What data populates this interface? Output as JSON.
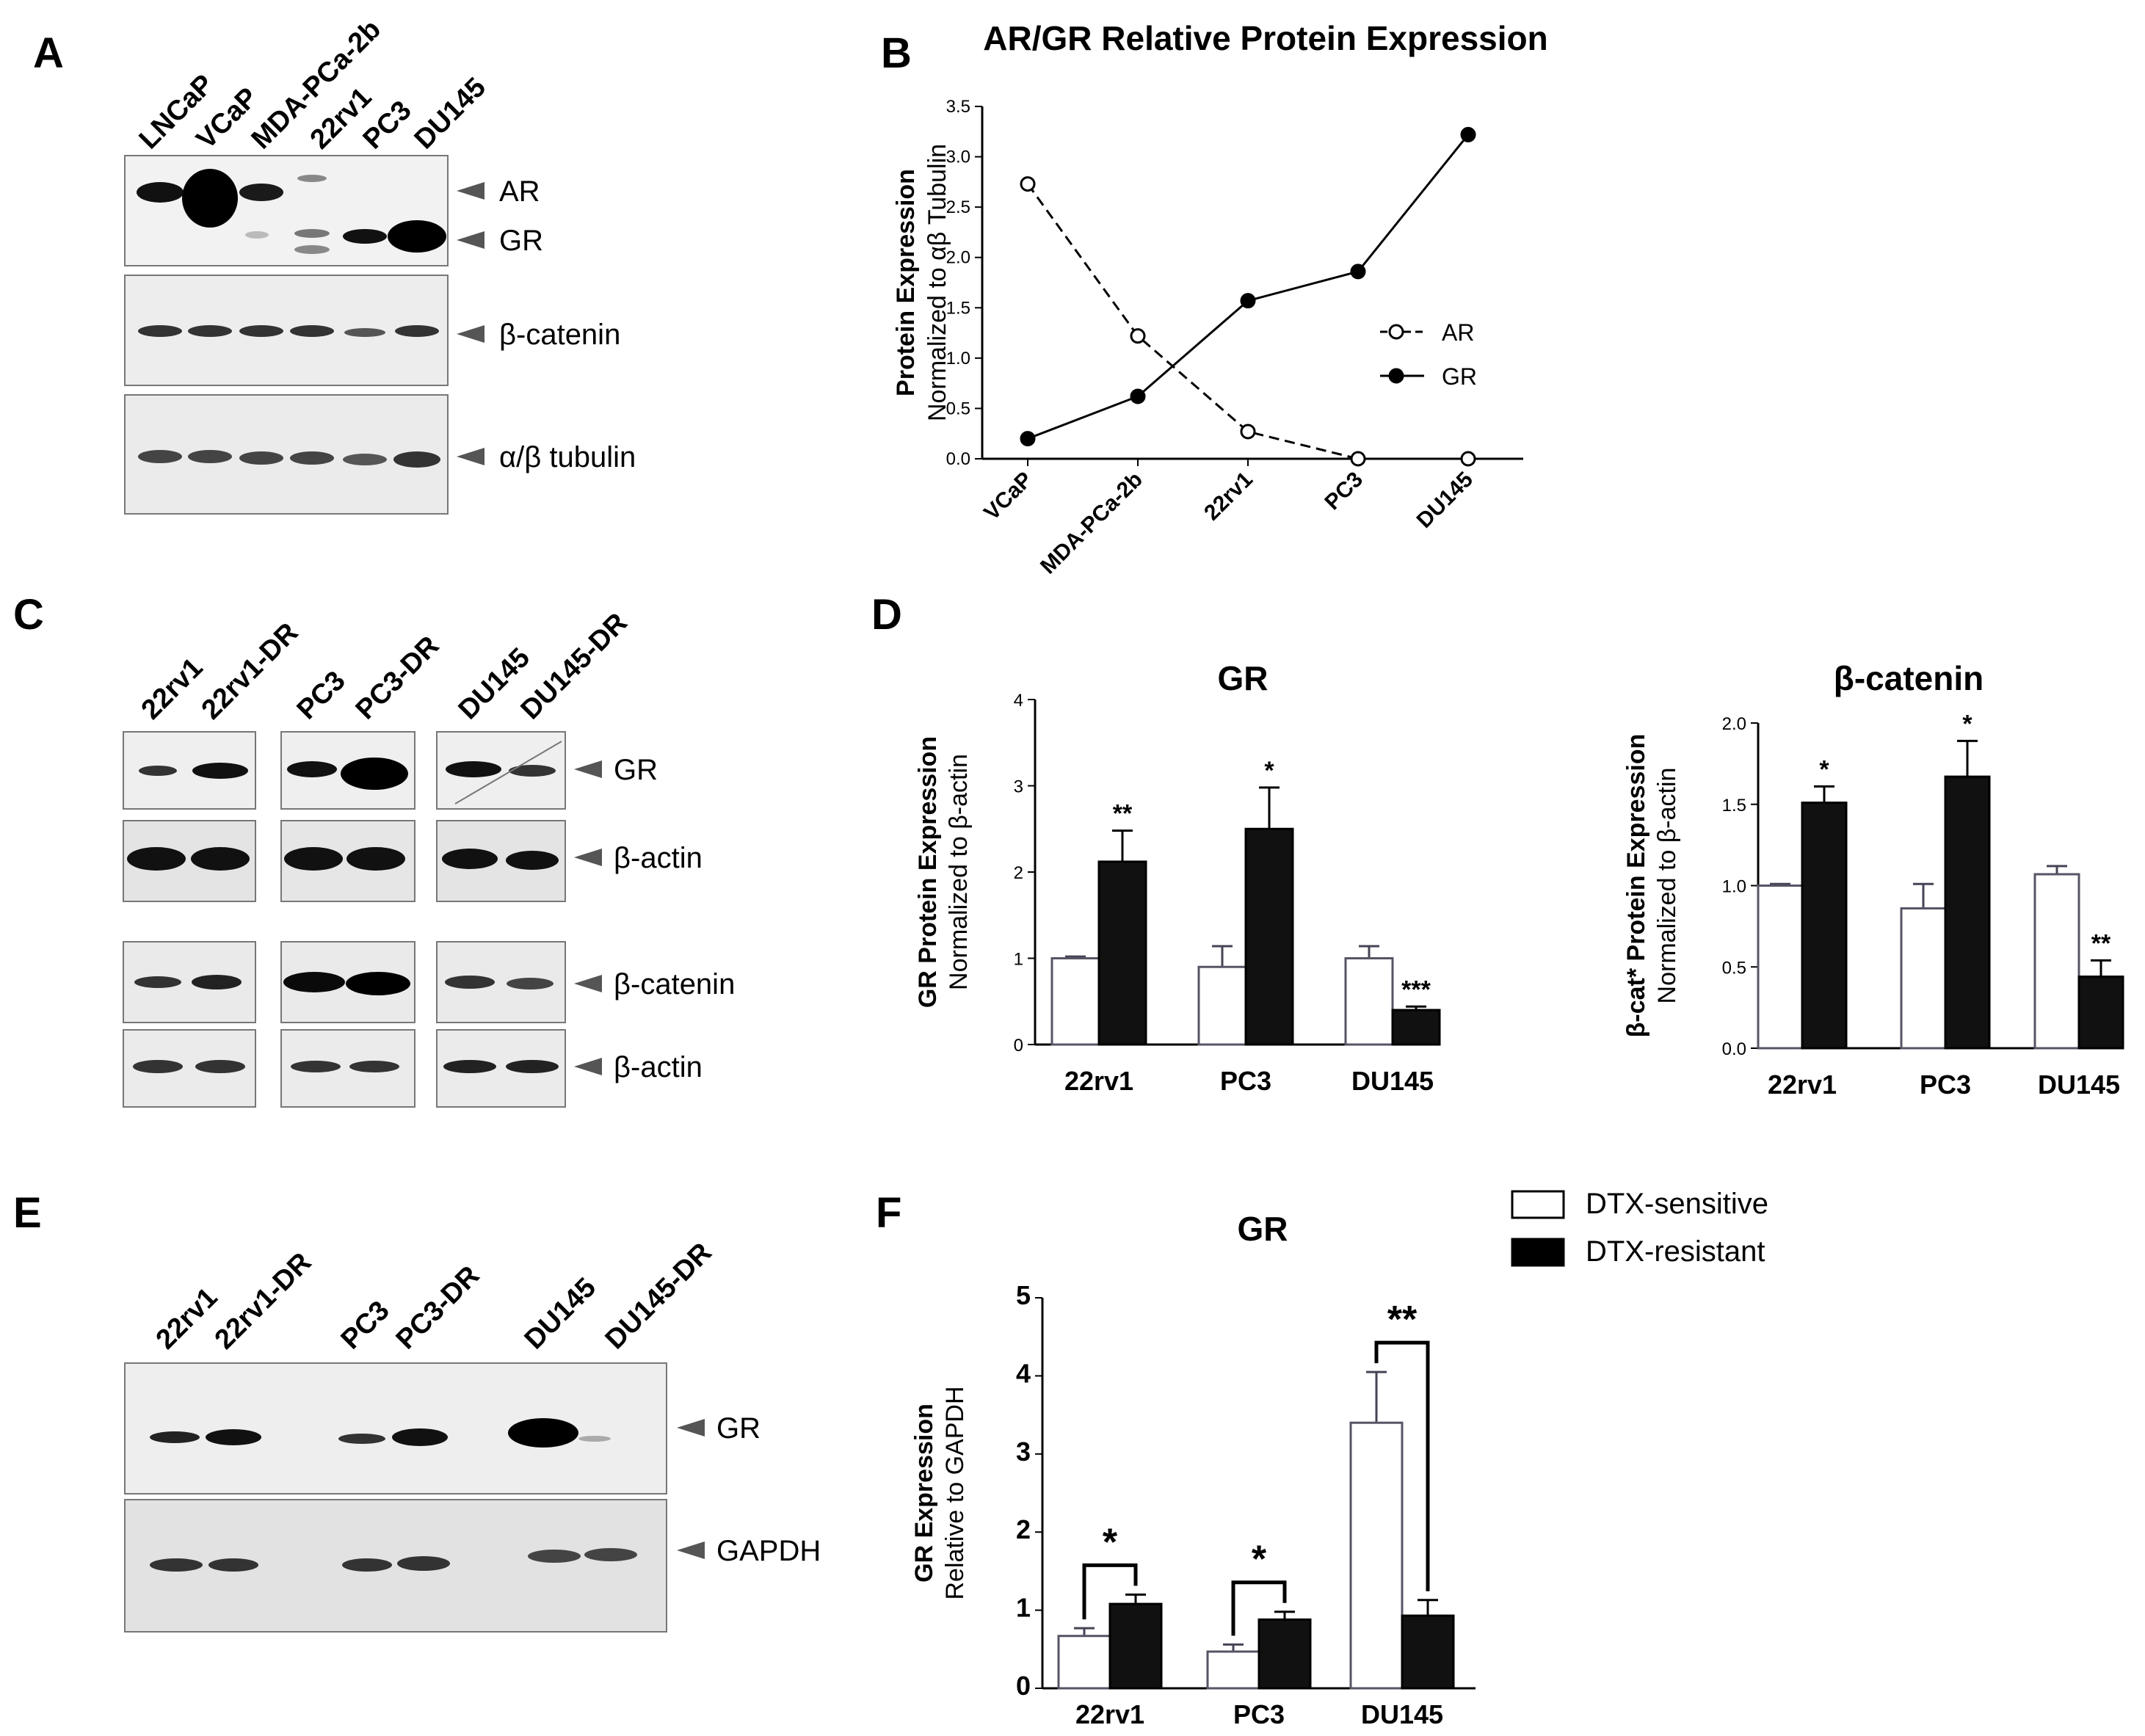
{
  "panels": {
    "A": {
      "letter": "A",
      "lanes": [
        "LNCaP",
        "VCaP",
        "MDA-PCa-2b",
        "22rv1",
        "PC3",
        "DU145"
      ],
      "labels": [
        "AR",
        "GR",
        "β-catenin",
        "α/β tubulin"
      ]
    },
    "C": {
      "letter": "C",
      "lanes": [
        "22rv1",
        "22rv1-DR",
        "PC3",
        "PC3-DR",
        "DU145",
        "DU145-DR"
      ],
      "labels": [
        "GR",
        "β-actin",
        "β-catenin",
        "β-actin"
      ]
    },
    "E": {
      "letter": "E",
      "lanes": [
        "22rv1",
        "22rv1-DR",
        "PC3",
        "PC3-DR",
        "DU145",
        "DU145-DR"
      ],
      "labels": [
        "GR",
        "GAPDH"
      ]
    },
    "B": {
      "letter": "B"
    },
    "D": {
      "letter": "D"
    },
    "F": {
      "letter": "F"
    }
  },
  "legend": {
    "sensitive": "DTX-sensitive",
    "resistant": "DTX-resistant",
    "sensitive_color": "#ffffff",
    "resistant_color": "#000000"
  },
  "chart_data": [
    {
      "panel": "B",
      "type": "line",
      "title": "AR/GR Relative Protein Expression",
      "ylabel": "Protein Expression",
      "ylabel2": "Normalized to αβ Tubulin",
      "categories": [
        "VCaP",
        "MDA-PCa-2b",
        "22rv1",
        "PC3",
        "DU145"
      ],
      "ylim": [
        0,
        3.5
      ],
      "yticks": [
        "0.0",
        "0.5",
        "1.0",
        "1.5",
        "2.0",
        "2.5",
        "3.0",
        "3.5"
      ],
      "series": [
        {
          "name": "AR",
          "values": [
            2.73,
            1.22,
            0.27,
            0.0,
            0.0
          ],
          "style": "dashed-open"
        },
        {
          "name": "GR",
          "values": [
            0.2,
            0.62,
            1.57,
            1.86,
            3.22
          ],
          "style": "solid-filled"
        }
      ]
    },
    {
      "panel": "D1",
      "type": "bar",
      "title": "GR",
      "ylabel": "GR Protein Expression",
      "ylabel2": "Normalized to β-actin",
      "categories": [
        "22rv1",
        "PC3",
        "DU145"
      ],
      "ylim": [
        0,
        4
      ],
      "yticks": [
        "0",
        "1",
        "2",
        "3",
        "4"
      ],
      "series": [
        {
          "name": "DTX-sensitive",
          "values": [
            1.0,
            0.9,
            1.0
          ],
          "errors": [
            0.02,
            0.24,
            0.14
          ]
        },
        {
          "name": "DTX-resistant",
          "values": [
            2.12,
            2.5,
            0.4
          ],
          "errors": [
            0.36,
            0.48,
            0.04
          ]
        }
      ],
      "stars": [
        "**",
        "*",
        "***"
      ]
    },
    {
      "panel": "D2",
      "type": "bar",
      "title": "β-catenin",
      "ylabel": "β-cat* Protein Expression",
      "ylabel2": "Normalized to β-actin",
      "categories": [
        "22rv1",
        "PC3",
        "DU145"
      ],
      "ylim": [
        0,
        2.0
      ],
      "yticks": [
        "0.0",
        "0.5",
        "1.0",
        "1.5",
        "2.0"
      ],
      "series": [
        {
          "name": "DTX-sensitive",
          "values": [
            1.0,
            0.86,
            1.07
          ],
          "errors": [
            0.01,
            0.15,
            0.05
          ]
        },
        {
          "name": "DTX-resistant",
          "values": [
            1.51,
            1.67,
            0.44
          ],
          "errors": [
            0.1,
            0.22,
            0.1
          ]
        }
      ],
      "stars": [
        "*",
        "*",
        "**"
      ]
    },
    {
      "panel": "F",
      "type": "bar",
      "title": "GR",
      "ylabel": "GR Expression",
      "ylabel2": "Relative to GAPDH",
      "categories": [
        "22rv1",
        "PC3",
        "DU145"
      ],
      "ylim": [
        0,
        5
      ],
      "yticks": [
        "0",
        "1",
        "2",
        "3",
        "4",
        "5"
      ],
      "series": [
        {
          "name": "DTX-sensitive",
          "values": [
            0.67,
            0.47,
            3.4
          ],
          "errors": [
            0.1,
            0.09,
            0.65
          ]
        },
        {
          "name": "DTX-resistant",
          "values": [
            1.08,
            0.88,
            0.93
          ],
          "errors": [
            0.12,
            0.1,
            0.2
          ]
        }
      ],
      "stars": [
        "*",
        "*",
        "**"
      ]
    }
  ]
}
